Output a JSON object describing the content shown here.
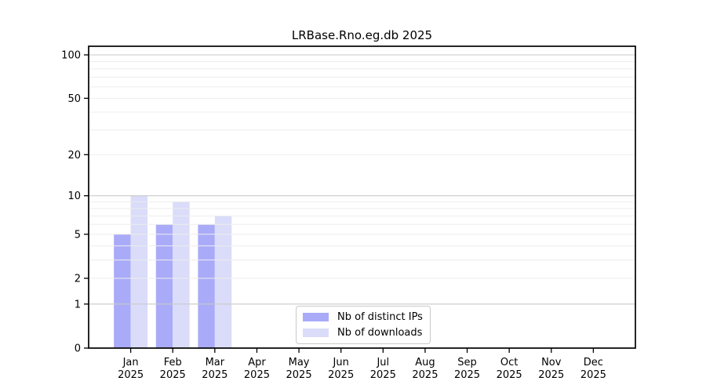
{
  "chart_data": {
    "type": "bar",
    "title": "LRBase.Rno.eg.db 2025",
    "categories": [
      "Jan",
      "Feb",
      "Mar",
      "Apr",
      "May",
      "Jun",
      "Jul",
      "Aug",
      "Sep",
      "Oct",
      "Nov",
      "Dec"
    ],
    "category_year": "2025",
    "series": [
      {
        "name": "Nb of distinct IPs",
        "color": "#a9abf8",
        "values": [
          5,
          6,
          6,
          0,
          0,
          0,
          0,
          0,
          0,
          0,
          0,
          0
        ]
      },
      {
        "name": "Nb of downloads",
        "color": "#dadcf9",
        "values": [
          10,
          9,
          7,
          0,
          0,
          0,
          0,
          0,
          0,
          0,
          0,
          0
        ]
      }
    ],
    "y_ticks": [
      100,
      50,
      20,
      10,
      5,
      2,
      1,
      0
    ],
    "ylim": [
      0,
      100
    ],
    "y_scale": "log1p",
    "grid": {
      "major_values": [
        1,
        10,
        100
      ],
      "major_color": "#c9c9c9",
      "minor_color": "#ededed"
    },
    "legend_position": "lower center",
    "axis_color": "#000000",
    "background": "#ffffff"
  }
}
